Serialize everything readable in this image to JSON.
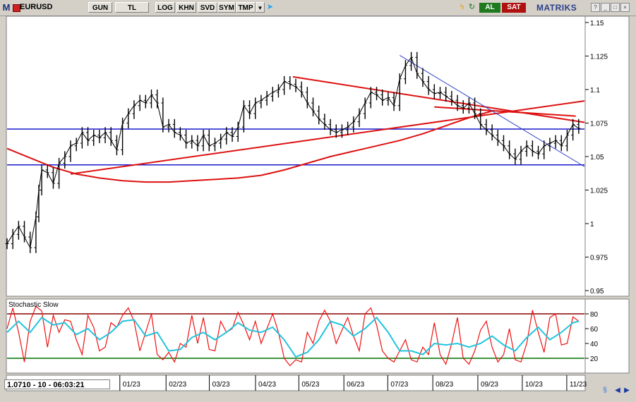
{
  "toolbar": {
    "logo": "M",
    "symbol": "EURUSD",
    "buttons": [
      "GUN",
      "TL",
      "LOG",
      "KHN",
      "SVD",
      "SYM",
      "TMP"
    ],
    "buy_label": "AL",
    "sell_label": "SAT",
    "brand": "MATRIKS"
  },
  "status": {
    "crosshair_readout": "1.0710 - 10 - 06:03:21"
  },
  "colors": {
    "price": "#000000",
    "trend_red": "#dd1111",
    "hline": "#1a1acc",
    "thin_blue": "#2f3fc8",
    "stoch_k": "#ee1111",
    "stoch_d": "#22c4dd",
    "upper_band": "#8b0000",
    "lower_band": "#007000"
  },
  "chart_data": [
    {
      "type": "line",
      "title": "",
      "y_tick_labels": [
        "1.15",
        "1.125",
        "1.1",
        "1.075",
        "1.05",
        "1.025",
        "1",
        "0.975",
        "0.95"
      ],
      "ylim": [
        0.949,
        1.151
      ],
      "x_tick_labels": [
        "01/23",
        "02/23",
        "03/23",
        "04/23",
        "05/23",
        "06/23",
        "07/23",
        "08/23",
        "09/23",
        "10/23",
        "11/23"
      ],
      "xlim": [
        0,
        100
      ],
      "x_tick_positions": [
        21,
        29,
        36.5,
        44.5,
        52,
        59.8,
        67.4,
        75.2,
        83,
        90.7,
        98.4
      ],
      "price_series": {
        "name": "EURUSD",
        "x": [
          0,
          1,
          2,
          3,
          4,
          5,
          5.5,
          6,
          7,
          8,
          9,
          10,
          11,
          12,
          13,
          14,
          15,
          16,
          17,
          18,
          19,
          20,
          21,
          22,
          23,
          24,
          25,
          26,
          27,
          28,
          29,
          30,
          31,
          32,
          33,
          34,
          35,
          36,
          37,
          38,
          39,
          40,
          41,
          42,
          43,
          44,
          45,
          46,
          47,
          48,
          49,
          50,
          51,
          52,
          53,
          54,
          55,
          56,
          57,
          58,
          59,
          60,
          61,
          62,
          63,
          64,
          65,
          66,
          67,
          68,
          69,
          70,
          71,
          72,
          73,
          74,
          75,
          76,
          77,
          78,
          79,
          80,
          81,
          82,
          83,
          84,
          85,
          86,
          87,
          88,
          89,
          90,
          91,
          92,
          93,
          94,
          95,
          96,
          97,
          98,
          99
        ],
        "y": [
          0.985,
          0.992,
          0.998,
          0.99,
          0.982,
          1.005,
          1.025,
          1.04,
          1.038,
          1.03,
          1.045,
          1.05,
          1.058,
          1.06,
          1.068,
          1.062,
          1.066,
          1.064,
          1.068,
          1.062,
          1.055,
          1.075,
          1.082,
          1.088,
          1.092,
          1.09,
          1.096,
          1.09,
          1.072,
          1.074,
          1.068,
          1.066,
          1.06,
          1.062,
          1.058,
          1.066,
          1.058,
          1.06,
          1.063,
          1.068,
          1.065,
          1.072,
          1.088,
          1.082,
          1.09,
          1.092,
          1.095,
          1.098,
          1.1,
          1.106,
          1.104,
          1.102,
          1.098,
          1.09,
          1.084,
          1.078,
          1.074,
          1.07,
          1.068,
          1.07,
          1.072,
          1.076,
          1.082,
          1.09,
          1.098,
          1.096,
          1.092,
          1.094,
          1.088,
          1.108,
          1.118,
          1.124,
          1.112,
          1.106,
          1.1,
          1.097,
          1.098,
          1.095,
          1.092,
          1.088,
          1.086,
          1.09,
          1.082,
          1.074,
          1.07,
          1.066,
          1.062,
          1.058,
          1.052,
          1.048,
          1.054,
          1.058,
          1.054,
          1.052,
          1.058,
          1.06,
          1.062,
          1.058,
          1.066,
          1.074,
          1.071
        ]
      },
      "ma_curve": {
        "x": [
          0,
          4,
          8,
          12,
          16,
          20,
          24,
          28,
          32,
          36,
          40,
          44,
          48,
          52,
          56,
          60,
          64,
          68,
          72,
          76,
          80,
          84
        ],
        "y": [
          1.056,
          1.049,
          1.042,
          1.037,
          1.034,
          1.032,
          1.031,
          1.031,
          1.032,
          1.033,
          1.034,
          1.036,
          1.04,
          1.045,
          1.05,
          1.054,
          1.058,
          1.062,
          1.067,
          1.073,
          1.079,
          1.084
        ]
      },
      "horizontal_lines": [
        1.0705,
        1.0438
      ],
      "trendlines": [
        {
          "x": [
            11,
            100
          ],
          "y": [
            1.037,
            1.0915
          ]
        },
        {
          "x": [
            49.5,
            100
          ],
          "y": [
            1.1095,
            1.0755
          ]
        },
        {
          "x": [
            74,
            98.5
          ],
          "y": [
            1.087,
            1.0802
          ]
        },
        {
          "x": [
            68,
            100
          ],
          "y": [
            1.1255,
            1.0425
          ]
        }
      ]
    },
    {
      "type": "line",
      "title": "Stochastic Slow",
      "y_tick_labels": [
        "80",
        "60",
        "40",
        "20"
      ],
      "ylim": [
        0,
        100
      ],
      "bands": [
        80,
        20
      ],
      "series": [
        {
          "x": [
            0,
            1,
            2,
            3,
            4,
            5,
            6,
            7,
            8,
            9,
            10,
            11,
            12,
            13,
            14,
            15,
            16,
            17,
            18,
            19,
            20,
            21,
            22,
            23,
            24,
            25,
            26,
            27,
            28,
            29,
            30,
            31,
            32,
            33,
            34,
            35,
            36,
            37,
            38,
            39,
            40,
            41,
            42,
            43,
            44,
            45,
            46,
            47,
            48,
            49,
            50,
            51,
            52,
            53,
            54,
            55,
            56,
            57,
            58,
            59,
            60,
            61,
            62,
            63,
            64,
            65,
            66,
            67,
            68,
            69,
            70,
            71,
            72,
            73,
            74,
            75,
            76,
            77,
            78,
            79,
            80,
            81,
            82,
            83,
            84,
            85,
            86,
            87,
            88,
            89,
            90,
            91,
            92,
            93,
            94,
            95,
            96,
            97,
            98,
            99
          ],
          "values": [
            60,
            88,
            55,
            15,
            70,
            90,
            84,
            35,
            78,
            55,
            72,
            70,
            45,
            25,
            78,
            62,
            30,
            35,
            68,
            62,
            78,
            88,
            70,
            30,
            55,
            80,
            25,
            18,
            28,
            15,
            40,
            35,
            78,
            40,
            75,
            32,
            30,
            70,
            55,
            60,
            82,
            65,
            45,
            70,
            40,
            60,
            80,
            55,
            20,
            10,
            18,
            15,
            55,
            40,
            70,
            85,
            70,
            40,
            58,
            75,
            50,
            30,
            80,
            88,
            65,
            30,
            20,
            15,
            30,
            45,
            18,
            15,
            35,
            25,
            68,
            25,
            12,
            40,
            75,
            20,
            12,
            30,
            58,
            70,
            35,
            15,
            25,
            60,
            18,
            15,
            40,
            85,
            55,
            28,
            75,
            80,
            38,
            40,
            76,
            70
          ]
        },
        {
          "x": [
            0,
            2,
            4,
            6,
            8,
            10,
            12,
            14,
            16,
            18,
            20,
            22,
            24,
            26,
            28,
            30,
            32,
            34,
            36,
            38,
            40,
            42,
            44,
            46,
            48,
            50,
            52,
            54,
            56,
            58,
            60,
            62,
            64,
            66,
            68,
            70,
            72,
            74,
            76,
            78,
            80,
            82,
            84,
            86,
            88,
            90,
            92,
            94,
            96,
            98,
            99
          ],
          "values": [
            55,
            70,
            55,
            75,
            65,
            68,
            52,
            60,
            45,
            55,
            70,
            72,
            50,
            55,
            30,
            32,
            48,
            55,
            45,
            55,
            68,
            58,
            55,
            62,
            45,
            22,
            28,
            45,
            70,
            65,
            50,
            60,
            75,
            55,
            30,
            30,
            25,
            40,
            38,
            40,
            35,
            40,
            50,
            38,
            30,
            48,
            62,
            45,
            55,
            68,
            70
          ]
        }
      ]
    }
  ]
}
